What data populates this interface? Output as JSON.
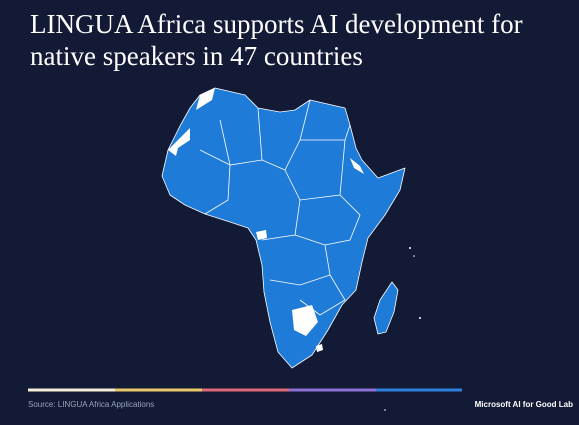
{
  "title": "LINGUA Africa supports AI development for native speakers in 47 countries",
  "source": "Source: LINGUA Africa Applications",
  "brand": "Microsoft AI for Good Lab"
}
